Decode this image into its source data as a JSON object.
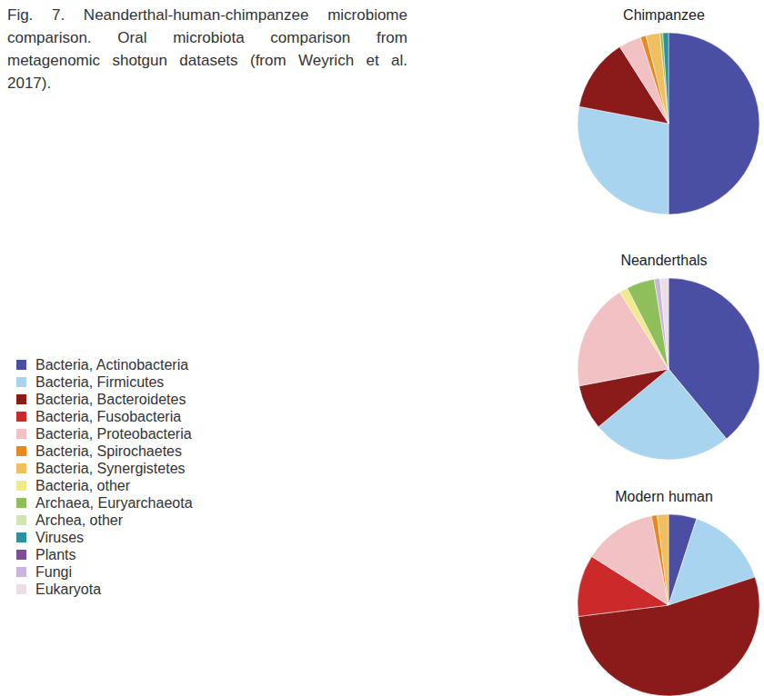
{
  "caption": "Fig. 7. Neanderthal-human-chimpanzee microbiome comparison. Oral microbiota comparison from metagenomic shotgun datasets (from Weyrich et al. 2017).",
  "legend_entries": [
    {
      "name": "Bacteria, Actinobacteria",
      "color": "#4a4fa3"
    },
    {
      "name": "Bacteria, Firmicutes",
      "color": "#a9d4f0"
    },
    {
      "name": "Bacteria, Bacteroidetes",
      "color": "#8b1a1a"
    },
    {
      "name": "Bacteria, Fusobacteria",
      "color": "#cc2a2a"
    },
    {
      "name": "Bacteria, Proteobacteria",
      "color": "#f2c1c4"
    },
    {
      "name": "Bacteria, Spirochaetes",
      "color": "#e8891f"
    },
    {
      "name": "Bacteria, Synergistetes",
      "color": "#f0c060"
    },
    {
      "name": "Bacteria, other",
      "color": "#f0ea8a"
    },
    {
      "name": "Archaea, Euryarchaeota",
      "color": "#8fbf5a"
    },
    {
      "name": "Archea, other",
      "color": "#cfe6b0"
    },
    {
      "name": "Viruses",
      "color": "#2f8f9a"
    },
    {
      "name": "Plants",
      "color": "#7d4e97"
    },
    {
      "name": "Fungi",
      "color": "#c9b5dc"
    },
    {
      "name": "Eukaryota",
      "color": "#eddde6"
    }
  ],
  "chart_data": [
    {
      "type": "pie",
      "title": "Chimpanzee",
      "categories": [
        "Bacteria, Actinobacteria",
        "Bacteria, Firmicutes",
        "Bacteria, Bacteroidetes",
        "Bacteria, Proteobacteria",
        "Bacteria, Spirochaetes",
        "Bacteria, Synergistetes",
        "Archaea, Euryarchaeota",
        "Viruses"
      ],
      "values": [
        50,
        28,
        13,
        4,
        1,
        2.5,
        0.5,
        1
      ],
      "colors": [
        "#4a4fa3",
        "#a9d4f0",
        "#8b1a1a",
        "#f2c1c4",
        "#e8891f",
        "#f0c060",
        "#8fbf5a",
        "#2f8f9a"
      ]
    },
    {
      "type": "pie",
      "title": "Neanderthals",
      "categories": [
        "Bacteria, Actinobacteria",
        "Bacteria, Firmicutes",
        "Bacteria, Bacteroidetes",
        "Bacteria, Proteobacteria",
        "Bacteria, other",
        "Archaea, Euryarchaeota",
        "Fungi",
        "Eukaryota"
      ],
      "values": [
        39,
        25,
        8,
        19,
        1.5,
        5,
        1,
        1.5
      ],
      "colors": [
        "#4a4fa3",
        "#a9d4f0",
        "#8b1a1a",
        "#f2c1c4",
        "#f0ea8a",
        "#8fbf5a",
        "#c9b5dc",
        "#eddde6"
      ]
    },
    {
      "type": "pie",
      "title": "Modern human",
      "categories": [
        "Bacteria, Actinobacteria",
        "Bacteria, Firmicutes",
        "Bacteria, Bacteroidetes",
        "Bacteria, Fusobacteria",
        "Bacteria, Proteobacteria",
        "Bacteria, Spirochaetes",
        "Bacteria, Synergistetes"
      ],
      "values": [
        5,
        15,
        53,
        11,
        13,
        1,
        2
      ],
      "colors": [
        "#4a4fa3",
        "#a9d4f0",
        "#8b1a1a",
        "#cc2a2a",
        "#f2c1c4",
        "#e8891f",
        "#f0c060"
      ]
    }
  ]
}
